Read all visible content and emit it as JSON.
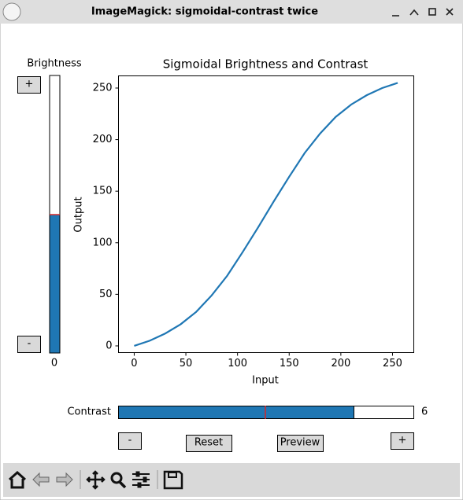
{
  "window": {
    "title": "ImageMagick: sigmoidal-contrast twice"
  },
  "brightness": {
    "label": "Brightness",
    "value": 0,
    "plus": "+",
    "minus": "-"
  },
  "contrast": {
    "label": "Contrast",
    "value": 6
  },
  "buttons": {
    "minus": "-",
    "reset": "Reset",
    "preview": "Preview",
    "plus": "+"
  },
  "chart_data": {
    "type": "line",
    "title": "Sigmoidal Brightness and Contrast",
    "x_label": "Input",
    "y_label": "Output",
    "x": [
      0,
      15,
      30,
      45,
      60,
      75,
      90,
      105,
      120,
      135,
      150,
      165,
      180,
      195,
      210,
      225,
      240,
      255
    ],
    "series": [
      {
        "color": "#1f77b4",
        "values": [
          0,
          5,
          12,
          21,
          33,
          49,
          68,
          91,
          115,
          140,
          164,
          187,
          206,
          222,
          234,
          243,
          250,
          255
        ]
      }
    ],
    "xlim": [
      -15.2,
      270.6
    ],
    "ylim": [
      -6.5,
      261.8
    ],
    "xticks": [
      0,
      50,
      100,
      150,
      200,
      250
    ],
    "yticks": [
      0,
      50,
      100,
      150,
      200,
      250
    ],
    "grid": false
  }
}
